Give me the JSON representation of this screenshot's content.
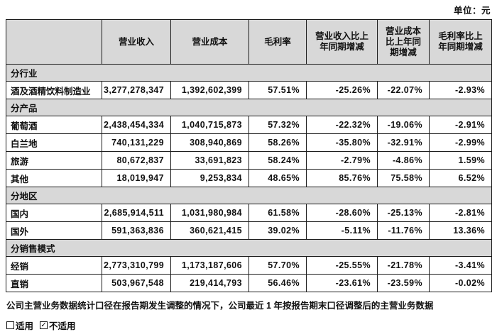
{
  "page": {
    "unit_label": "单位：元"
  },
  "table": {
    "columns": [
      "",
      "营业收入",
      "营业成本",
      "毛利率",
      "营业收入比上\n年同期增减",
      "营业成本\n比上年同\n期增减",
      "毛利率比上\n年同期增减"
    ],
    "sections": [
      {
        "header": "分行业",
        "rows": [
          {
            "label": "酒及酒精饮料制造业",
            "values": [
              "3,277,278,347",
              "1,392,602,399",
              "57.51%",
              "-25.26%",
              "-22.07%",
              "-2.93%"
            ]
          }
        ]
      },
      {
        "header": "分产品",
        "rows": [
          {
            "label": "葡萄酒",
            "values": [
              "2,438,454,334",
              "1,040,715,873",
              "57.32%",
              "-22.32%",
              "-19.06%",
              "-2.91%"
            ]
          },
          {
            "label": "白兰地",
            "values": [
              "740,131,229",
              "308,940,869",
              "58.26%",
              "-35.80%",
              "-32.91%",
              "-2.99%"
            ]
          },
          {
            "label": "旅游",
            "values": [
              "80,672,837",
              "33,691,823",
              "58.24%",
              "-2.79%",
              "-4.86%",
              "1.59%"
            ]
          },
          {
            "label": "其他",
            "values": [
              "18,019,947",
              "9,253,834",
              "48.65%",
              "85.76%",
              "75.58%",
              "6.52%"
            ]
          }
        ]
      },
      {
        "header": "分地区",
        "rows": [
          {
            "label": "国内",
            "values": [
              "2,685,914,511",
              "1,031,980,984",
              "61.58%",
              "-28.60%",
              "-25.13%",
              "-2.81%"
            ]
          },
          {
            "label": "国外",
            "values": [
              "591,363,836",
              "360,621,415",
              "39.02%",
              "-5.11%",
              "-11.76%",
              "13.36%"
            ]
          }
        ]
      },
      {
        "header": "分销售模式",
        "rows": [
          {
            "label": "经销",
            "values": [
              "2,773,310,799",
              "1,173,187,606",
              "57.70%",
              "-25.55%",
              "-21.78%",
              "-3.41%"
            ]
          },
          {
            "label": "直销",
            "values": [
              "503,967,548",
              "219,414,793",
              "56.46%",
              "-23.61%",
              "-23.59%",
              "-0.02%"
            ]
          }
        ]
      }
    ]
  },
  "footer": {
    "note": "公司主营业务数据统计口径在报告期发生调整的情况下，公司最近 1 年按报告期末口径调整后的主营业务数据",
    "options": [
      {
        "label": "适用",
        "checked": false
      },
      {
        "label": "不适用",
        "checked": true
      }
    ],
    "check_glyph": "✓"
  },
  "colors": {
    "header_bg": "#d8d8d8",
    "border": "#1c1c1c",
    "text": "#111111"
  }
}
